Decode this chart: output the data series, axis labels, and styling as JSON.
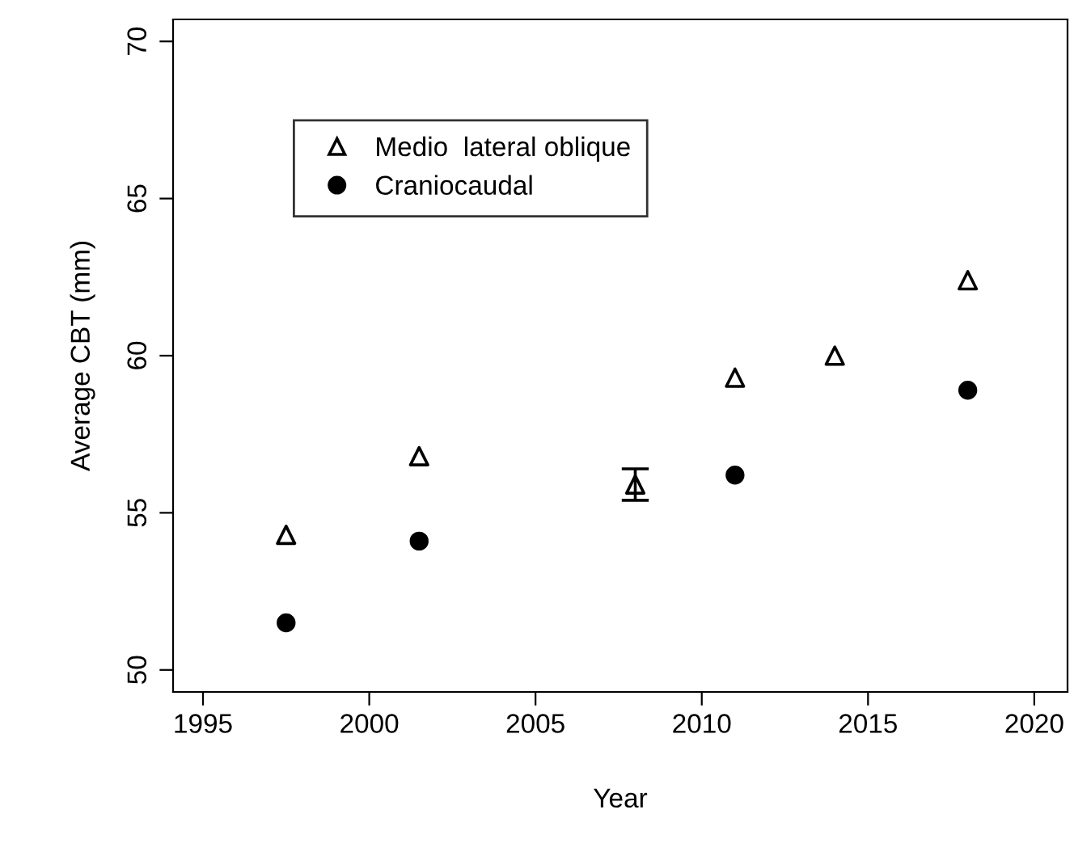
{
  "chart_data": {
    "type": "scatter",
    "xlabel": "Year",
    "ylabel": "Average CBT (mm)",
    "series": [
      {
        "name": "Medio  lateral oblique",
        "color": "#000000",
        "marker": "triangle",
        "x": [
          1997.5,
          2001.5,
          2008,
          2011,
          2014,
          2018
        ],
        "values": [
          54.3,
          56.8,
          55.9,
          59.3,
          60.0,
          62.4
        ],
        "errors": [
          null,
          null,
          0.5,
          null,
          null,
          null
        ]
      },
      {
        "name": "Craniocaudal",
        "color": "#000000",
        "marker": "circle",
        "x": [
          1997.5,
          2001.5,
          2011,
          2018
        ],
        "values": [
          51.5,
          54.1,
          56.2,
          58.9
        ]
      }
    ],
    "xlim": [
      1994.1,
      2021
    ],
    "xticks": [
      1995,
      2000,
      2005,
      2010,
      2015,
      2020
    ],
    "ylim": [
      49.3,
      70.7
    ],
    "yticks": [
      50,
      55,
      60,
      65,
      70
    ],
    "grid": false,
    "legend": "top left"
  }
}
